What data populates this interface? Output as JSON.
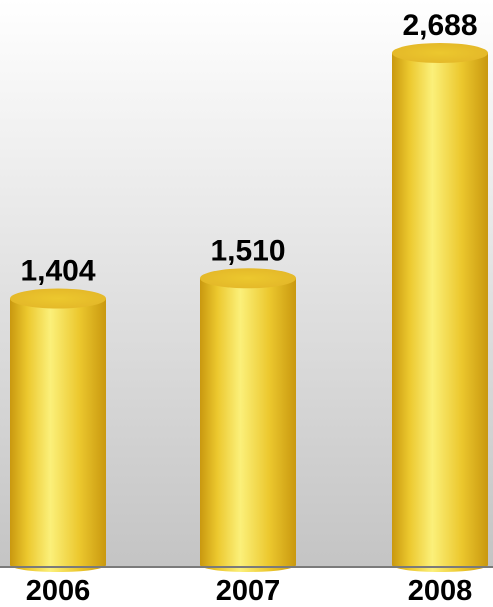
{
  "chart_data": {
    "type": "bar",
    "style": "3d-cylinder",
    "categories": [
      "2006",
      "2007",
      "2008"
    ],
    "values": [
      1404,
      1510,
      2688
    ],
    "value_labels": [
      "1,404",
      "1,510",
      "2,688"
    ],
    "title": "",
    "xlabel": "",
    "ylabel": "",
    "ylim": [
      0,
      2688
    ],
    "grid": false,
    "legend": "none",
    "colors": {
      "bar_light": "#fbf07a",
      "bar_mid": "#ecc82e",
      "bar_dark": "#c9980f",
      "bar_top": "#e3b628",
      "background_top": "#ffffff",
      "background_bottom": "#c4c4c4",
      "baseline": "#7a7a7a"
    }
  }
}
